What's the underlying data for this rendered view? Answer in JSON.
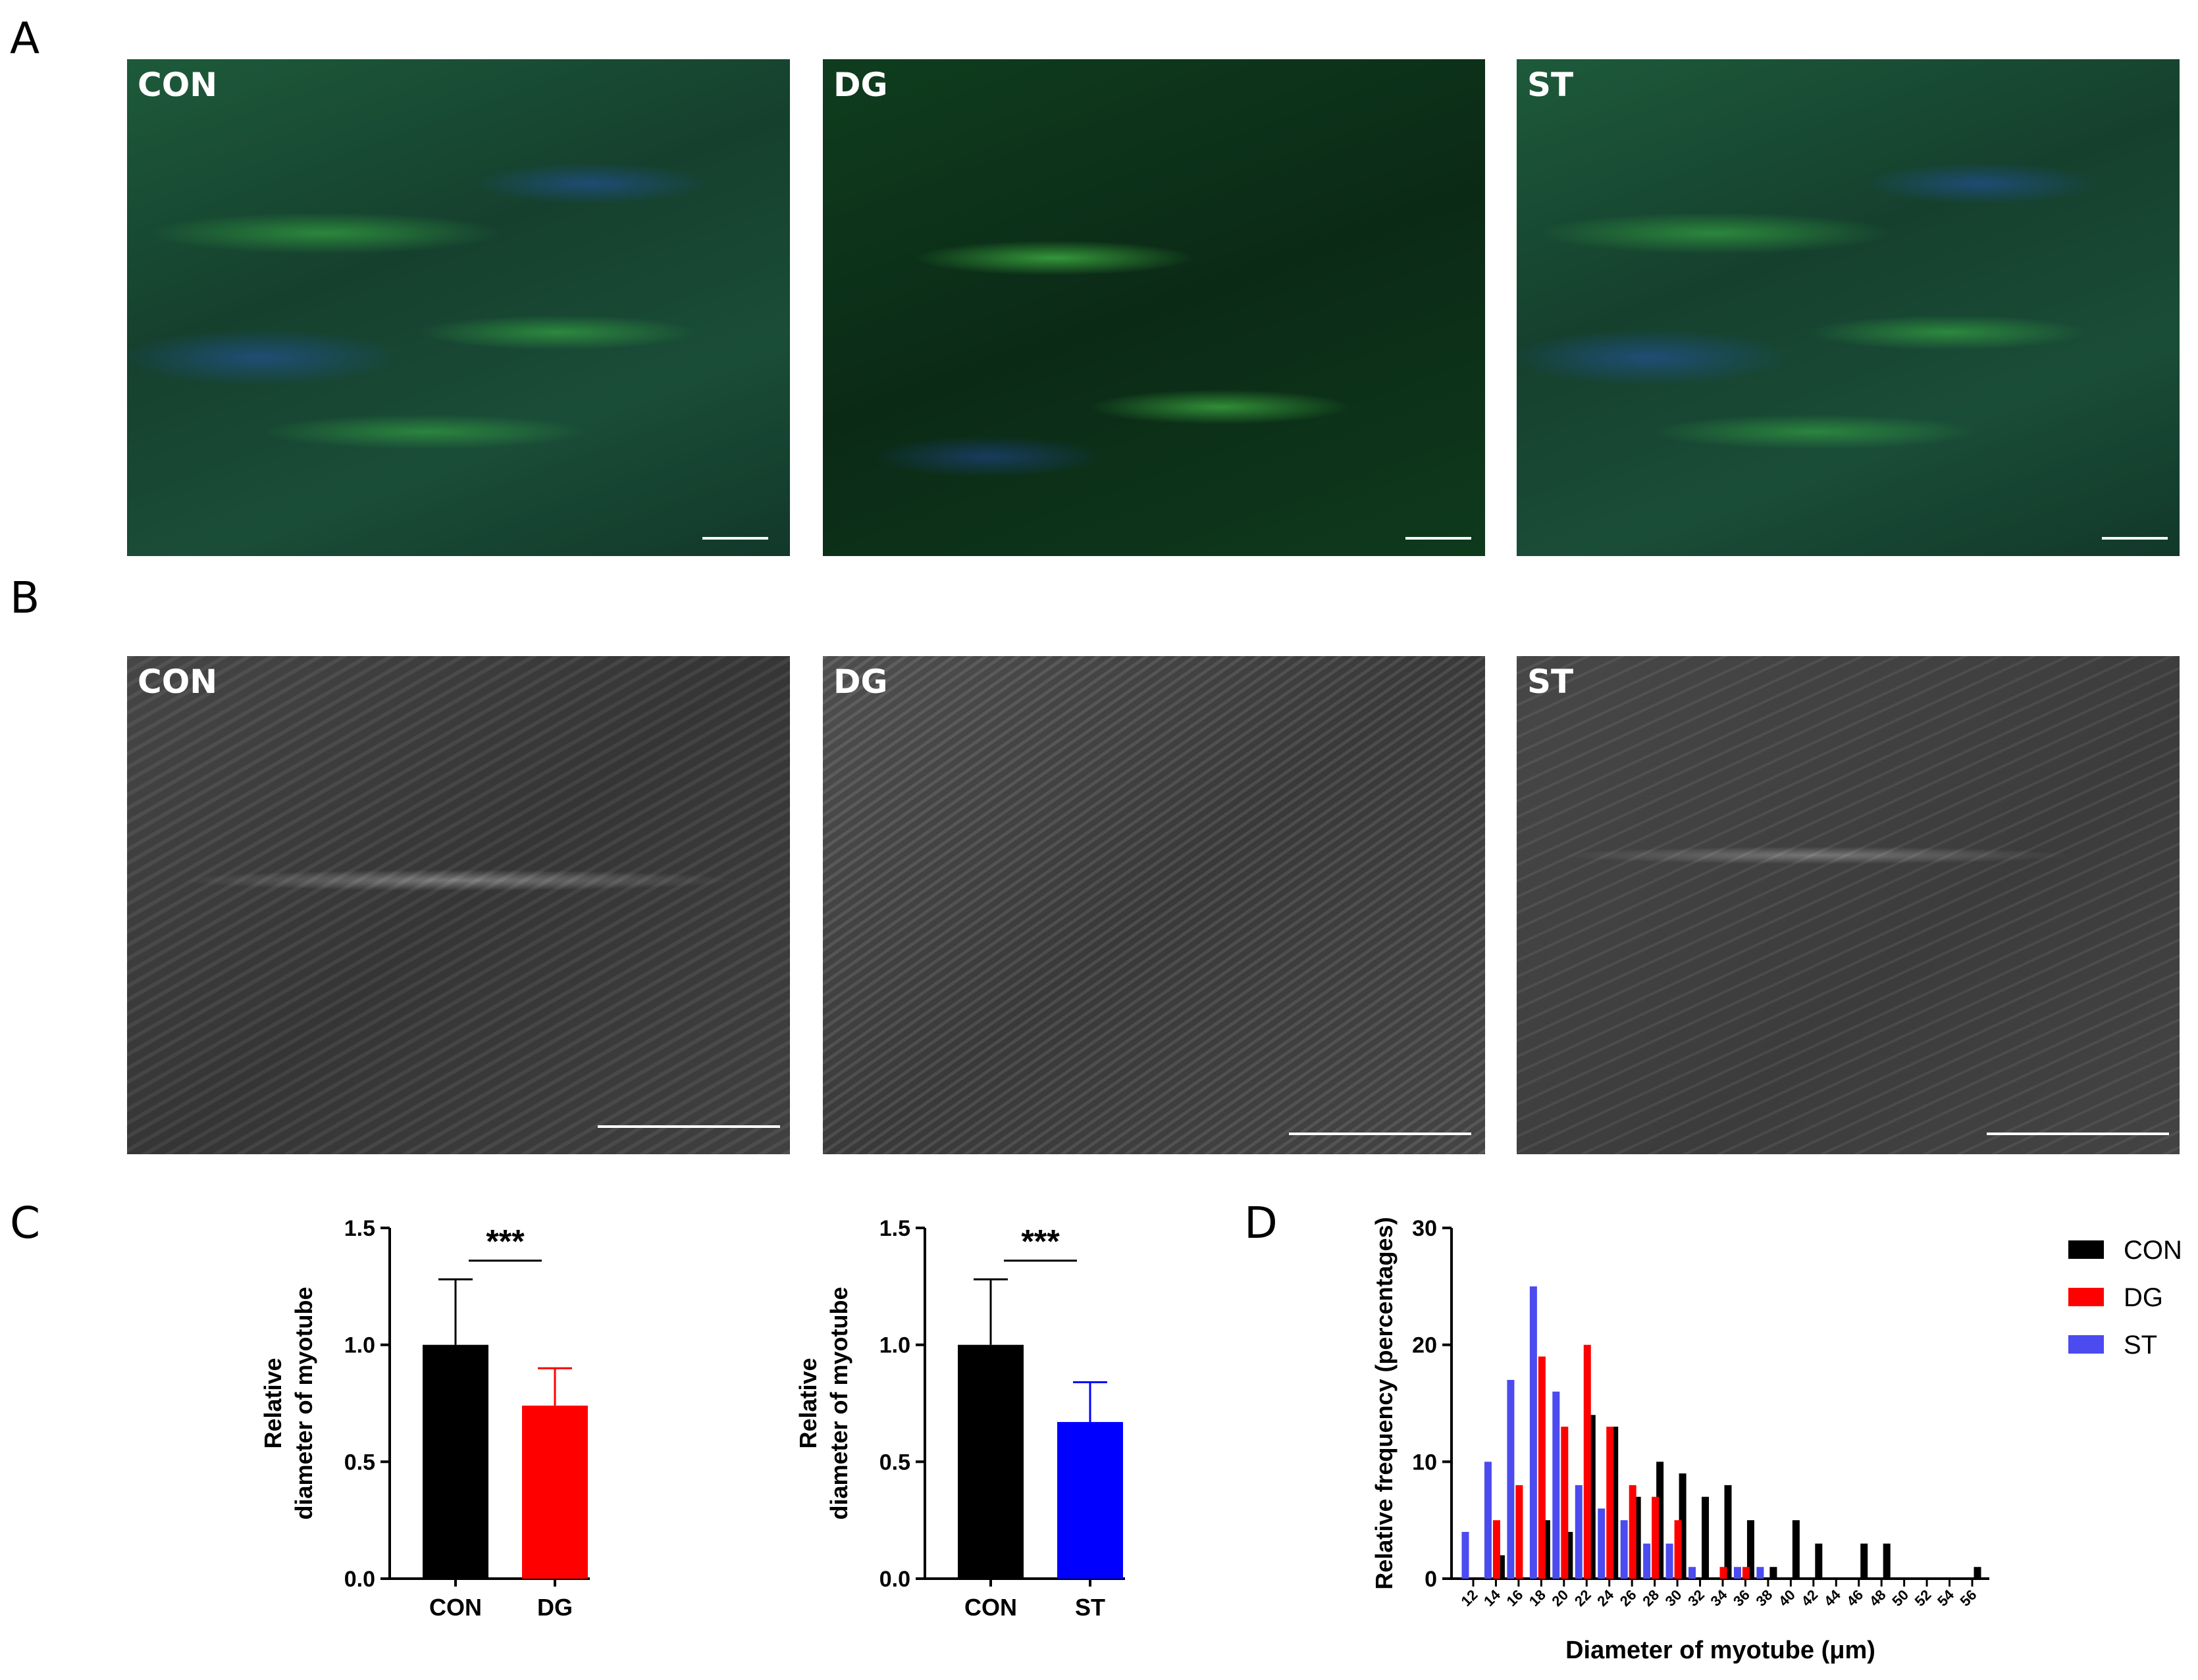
{
  "panel_letters": {
    "a": "A",
    "b": "B",
    "c": "C",
    "d": "D"
  },
  "panel_a": {
    "labels": [
      "CON",
      "DG",
      "ST"
    ]
  },
  "panel_b": {
    "labels": [
      "CON",
      "DG",
      "ST"
    ]
  },
  "chart_data": [
    {
      "type": "bar",
      "categories": [
        "CON",
        "DG"
      ],
      "values": [
        1.0,
        0.74
      ],
      "errors": [
        0.28,
        0.16
      ],
      "colors": [
        "#000000",
        "#ff0000"
      ],
      "ylabel_lines": [
        "Relative",
        "diameter of myotube"
      ],
      "ylim": [
        0,
        1.5
      ],
      "yticks": [
        "0.0",
        "0.5",
        "1.0",
        "1.5"
      ],
      "yticks_values": [
        0,
        0.5,
        1.0,
        1.5
      ],
      "significance": "***"
    },
    {
      "type": "bar",
      "categories": [
        "CON",
        "ST"
      ],
      "values": [
        1.0,
        0.67
      ],
      "errors": [
        0.28,
        0.17
      ],
      "colors": [
        "#000000",
        "#0000ff"
      ],
      "ylabel_lines": [
        "Relative",
        "diameter of myotube"
      ],
      "ylim": [
        0,
        1.5
      ],
      "yticks": [
        "0.0",
        "0.5",
        "1.0",
        "1.5"
      ],
      "yticks_values": [
        0,
        0.5,
        1.0,
        1.5
      ],
      "significance": "***"
    },
    {
      "type": "bar",
      "xlabel": "Diameter of myotube (μm)",
      "ylabel": "Relative frequency (percentages)",
      "ylim": [
        0,
        30
      ],
      "yticks": [
        "0",
        "10",
        "20",
        "30"
      ],
      "yticks_values": [
        0,
        10,
        20,
        30
      ],
      "x": [
        12,
        14,
        16,
        18,
        20,
        22,
        24,
        26,
        28,
        30,
        32,
        34,
        36,
        38,
        40,
        42,
        44,
        46,
        48,
        50,
        52,
        54,
        56
      ],
      "legend_position": "right",
      "series": [
        {
          "name": "CON",
          "color": "#000000",
          "values": [
            0,
            2,
            0,
            5,
            4,
            14,
            13,
            7,
            10,
            9,
            7,
            8,
            5,
            1,
            5,
            3,
            0,
            3,
            3,
            0,
            0,
            0,
            1
          ]
        },
        {
          "name": "DG",
          "color": "#ff0000",
          "values": [
            0,
            5,
            8,
            19,
            13,
            20,
            13,
            8,
            7,
            5,
            0,
            1,
            1,
            0,
            0,
            0,
            0,
            0,
            0,
            0,
            0,
            0,
            0
          ]
        },
        {
          "name": "ST",
          "color": "#4b4bf0",
          "values": [
            4,
            10,
            17,
            25,
            16,
            8,
            6,
            5,
            3,
            3,
            1,
            0,
            1,
            1,
            0,
            0,
            0,
            0,
            0,
            0,
            0,
            0,
            0
          ]
        }
      ]
    }
  ]
}
